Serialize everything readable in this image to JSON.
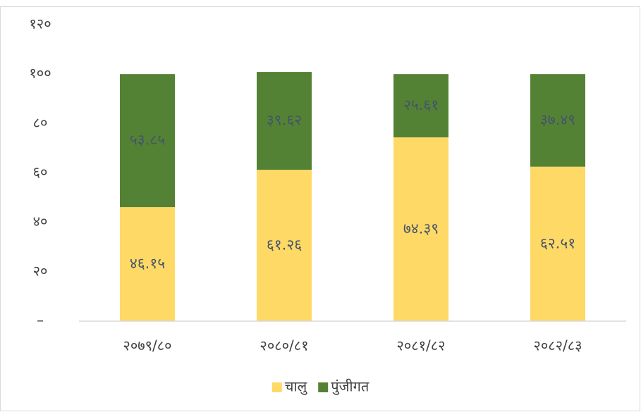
{
  "chart_data": {
    "type": "stacked_bar",
    "categories": [
      "२०७९/८०",
      "२०८०/८१",
      "२०८१/८२",
      "२०८२/८३"
    ],
    "series": [
      {
        "name": "चालु",
        "color": "#FFD966",
        "values": [
          46.15,
          61.26,
          74.39,
          62.51
        ],
        "value_labels": [
          "४६.१५",
          "६१.२६",
          "७४.३९",
          "६२.५१"
        ]
      },
      {
        "name": "पुंजीगत",
        "color": "#548235",
        "values": [
          53.85,
          39.62,
          25.61,
          37.49
        ],
        "value_labels": [
          "५३.८५",
          "३९.६२",
          "२५.६१",
          "३७.४९"
        ]
      }
    ],
    "ylim": [
      0,
      120
    ],
    "yticks": [
      {
        "value": 0,
        "label": "–"
      },
      {
        "value": 20,
        "label": "२०"
      },
      {
        "value": 40,
        "label": "४०"
      },
      {
        "value": 60,
        "label": "६०"
      },
      {
        "value": 80,
        "label": "८०"
      },
      {
        "value": 100,
        "label": "१००"
      },
      {
        "value": 120,
        "label": "१२०"
      }
    ],
    "grid": false,
    "legend": "bottom"
  }
}
